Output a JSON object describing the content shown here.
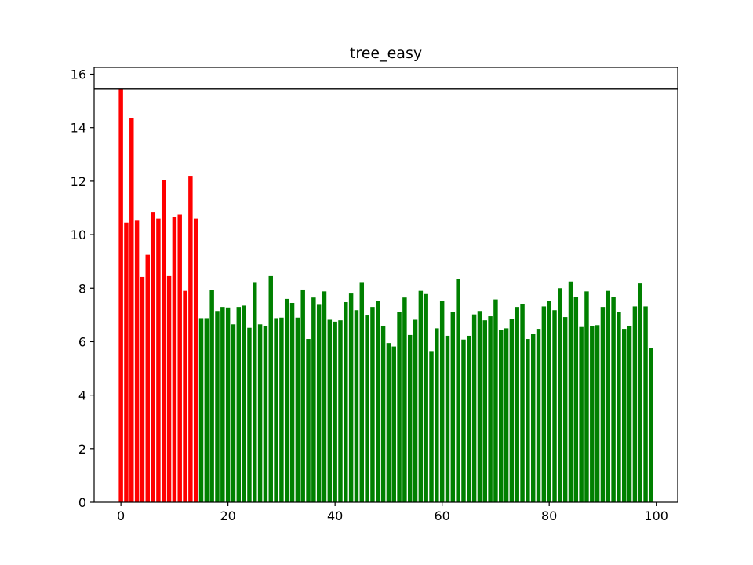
{
  "chart_data": {
    "type": "bar",
    "title": "tree_easy",
    "xlabel": "",
    "ylabel": "",
    "xlim": [
      -5.0,
      104.0
    ],
    "ylim": [
      0,
      16.25
    ],
    "xticks": [
      0,
      20,
      40,
      60,
      80,
      100
    ],
    "yticks": [
      0,
      2,
      4,
      6,
      8,
      10,
      12,
      14,
      16
    ],
    "grid": false,
    "reference_line": {
      "y": 15.45,
      "color": "#000000"
    },
    "colors": {
      "highlight": "#ff0000",
      "normal": "#008000"
    },
    "highlight_count": 15,
    "x": [
      0,
      1,
      2,
      3,
      4,
      5,
      6,
      7,
      8,
      9,
      10,
      11,
      12,
      13,
      14,
      15,
      16,
      17,
      18,
      19,
      20,
      21,
      22,
      23,
      24,
      25,
      26,
      27,
      28,
      29,
      30,
      31,
      32,
      33,
      34,
      35,
      36,
      37,
      38,
      39,
      40,
      41,
      42,
      43,
      44,
      45,
      46,
      47,
      48,
      49,
      50,
      51,
      52,
      53,
      54,
      55,
      56,
      57,
      58,
      59,
      60,
      61,
      62,
      63,
      64,
      65,
      66,
      67,
      68,
      69,
      70,
      71,
      72,
      73,
      74,
      75,
      76,
      77,
      78,
      79,
      80,
      81,
      82,
      83,
      84,
      85,
      86,
      87,
      88,
      89,
      90,
      91,
      92,
      93,
      94,
      95,
      96,
      97,
      98,
      99
    ],
    "values": [
      15.45,
      10.45,
      14.35,
      10.55,
      8.42,
      9.25,
      10.85,
      10.6,
      12.05,
      8.45,
      10.65,
      10.75,
      7.9,
      12.2,
      10.6,
      6.88,
      6.88,
      7.92,
      7.15,
      7.3,
      7.28,
      6.65,
      7.3,
      7.35,
      6.52,
      8.2,
      6.65,
      6.6,
      8.45,
      6.88,
      6.9,
      7.6,
      7.45,
      6.9,
      7.95,
      6.1,
      7.65,
      7.38,
      7.88,
      6.82,
      6.75,
      6.8,
      7.48,
      7.8,
      7.18,
      8.2,
      6.98,
      7.3,
      7.52,
      6.6,
      5.95,
      5.82,
      7.1,
      7.65,
      6.25,
      6.82,
      7.9,
      7.78,
      5.65,
      6.5,
      7.52,
      6.22,
      7.12,
      8.35,
      6.08,
      6.22,
      7.02,
      7.15,
      6.8,
      6.95,
      7.58,
      6.45,
      6.5,
      6.85,
      7.3,
      7.42,
      6.1,
      6.28,
      6.48,
      7.32,
      7.52,
      7.18,
      8.0,
      6.92,
      8.25,
      7.68,
      6.55,
      7.88,
      6.58,
      6.62,
      7.3,
      7.9,
      7.68,
      7.1,
      6.48,
      6.6,
      7.32,
      8.18,
      7.32,
      5.75
    ]
  }
}
